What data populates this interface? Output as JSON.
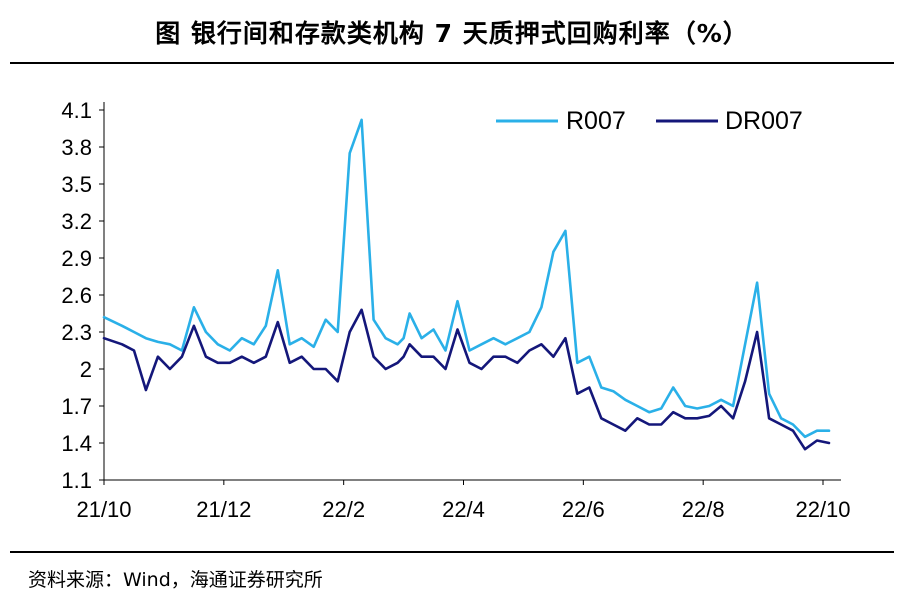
{
  "title": "图  银行间和存款类机构 7 天质押式回购利率（%）",
  "source": "资料来源：Wind，海通证券研究所",
  "chart_data": {
    "type": "line",
    "title": "银行间和存款类机构 7 天质押式回购利率（%）",
    "ylabel": "",
    "xlabel": "",
    "ylim": [
      1.1,
      4.1
    ],
    "yticks": [
      "4.1",
      "3.8",
      "3.5",
      "3.2",
      "2.9",
      "2.6",
      "2.3",
      "2",
      "1.7",
      "1.4",
      "1.1"
    ],
    "xticks": [
      "21/10",
      "21/12",
      "22/2",
      "22/4",
      "22/6",
      "22/8",
      "22/10"
    ],
    "legend_position": "top-right",
    "series": [
      {
        "name": "R007",
        "color": "#2ab0e8",
        "x": [
          0,
          0.3,
          0.5,
          0.7,
          0.9,
          1.1,
          1.3,
          1.5,
          1.7,
          1.9,
          2.1,
          2.3,
          2.5,
          2.7,
          2.9,
          3.1,
          3.3,
          3.5,
          3.7,
          3.9,
          4.1,
          4.3,
          4.5,
          4.7,
          4.9,
          5.0,
          5.1,
          5.3,
          5.5,
          5.7,
          5.9,
          6.1,
          6.3,
          6.5,
          6.7,
          6.9,
          7.1,
          7.3,
          7.5,
          7.7,
          7.9,
          8.1,
          8.3,
          8.5,
          8.7,
          8.9,
          9.1,
          9.3,
          9.5,
          9.7,
          9.9,
          10.1,
          10.3,
          10.5,
          10.7,
          10.9,
          11.1,
          11.3,
          11.5,
          11.7,
          11.9,
          12.1
        ],
        "values": [
          2.42,
          2.35,
          2.3,
          2.25,
          2.22,
          2.2,
          2.15,
          2.5,
          2.3,
          2.2,
          2.15,
          2.25,
          2.2,
          2.35,
          2.8,
          2.2,
          2.25,
          2.18,
          2.4,
          2.3,
          3.75,
          4.02,
          2.4,
          2.25,
          2.2,
          2.25,
          2.45,
          2.25,
          2.32,
          2.15,
          2.55,
          2.15,
          2.2,
          2.25,
          2.2,
          2.25,
          2.3,
          2.5,
          2.95,
          3.12,
          2.05,
          2.1,
          1.85,
          1.82,
          1.75,
          1.7,
          1.65,
          1.68,
          1.85,
          1.7,
          1.68,
          1.7,
          1.75,
          1.7,
          2.2,
          2.7,
          1.8,
          1.6,
          1.55,
          1.45,
          1.5,
          1.5
        ]
      },
      {
        "name": "DR007",
        "color": "#14177a",
        "x": [
          0,
          0.3,
          0.5,
          0.7,
          0.9,
          1.1,
          1.3,
          1.5,
          1.7,
          1.9,
          2.1,
          2.3,
          2.5,
          2.7,
          2.9,
          3.1,
          3.3,
          3.5,
          3.7,
          3.9,
          4.1,
          4.3,
          4.5,
          4.7,
          4.9,
          5.0,
          5.1,
          5.3,
          5.5,
          5.7,
          5.9,
          6.1,
          6.3,
          6.5,
          6.7,
          6.9,
          7.1,
          7.3,
          7.5,
          7.7,
          7.9,
          8.1,
          8.3,
          8.5,
          8.7,
          8.9,
          9.1,
          9.3,
          9.5,
          9.7,
          9.9,
          10.1,
          10.3,
          10.5,
          10.7,
          10.9,
          11.1,
          11.3,
          11.5,
          11.7,
          11.9,
          12.1
        ],
        "values": [
          2.25,
          2.2,
          2.15,
          1.83,
          2.1,
          2.0,
          2.1,
          2.35,
          2.1,
          2.05,
          2.05,
          2.1,
          2.05,
          2.1,
          2.38,
          2.05,
          2.1,
          2.0,
          2.0,
          1.9,
          2.3,
          2.48,
          2.1,
          2.0,
          2.05,
          2.1,
          2.2,
          2.1,
          2.1,
          2.0,
          2.32,
          2.05,
          2.0,
          2.1,
          2.1,
          2.05,
          2.15,
          2.2,
          2.1,
          2.25,
          1.8,
          1.85,
          1.6,
          1.55,
          1.5,
          1.6,
          1.55,
          1.55,
          1.65,
          1.6,
          1.6,
          1.62,
          1.7,
          1.6,
          1.9,
          2.3,
          1.6,
          1.55,
          1.5,
          1.35,
          1.42,
          1.4
        ]
      }
    ],
    "notes": "x values are months elapsed since 21/10; approximate readings"
  }
}
